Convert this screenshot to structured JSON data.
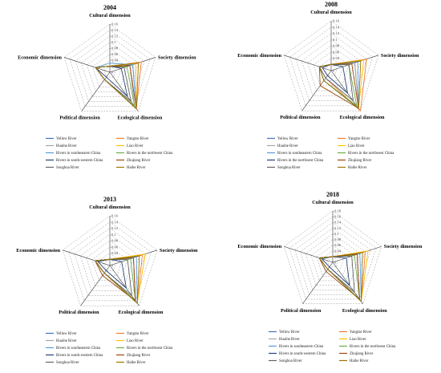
{
  "figure": {
    "background": "#ffffff"
  },
  "chart_data": [
    {
      "type": "radar",
      "title": "2004",
      "axes": [
        "Cultural dimension",
        "Society dimension",
        "Ecological dimension",
        "Political dimension",
        "Economic dimension"
      ],
      "ticks": [
        "0",
        "0.02",
        "0.04",
        "0.06",
        "0.08",
        "0.1",
        "0.12",
        "0.14",
        "0.16"
      ],
      "rmax": 0.16,
      "legend": [
        "Yellow River",
        "Yangtze River",
        "Huaihe River",
        "Liao River",
        "Rivers in southeastern China",
        "Rivers in the northwest China",
        "Rivers in south-western China",
        "Zhujiang River",
        "Songhua River",
        "Haihe River"
      ],
      "series": [
        {
          "name": "Yellow River",
          "color": "#4472c4",
          "values": [
            0.02,
            0.08,
            0.15,
            0.03,
            0.05
          ]
        },
        {
          "name": "Yangtze River",
          "color": "#ed7d31",
          "values": [
            0.02,
            0.11,
            0.15,
            0.03,
            0.05
          ]
        },
        {
          "name": "Huaihe River",
          "color": "#a5a5a5",
          "values": [
            0.02,
            0.07,
            0.14,
            0.03,
            0.05
          ]
        },
        {
          "name": "Liao River",
          "color": "#ffc000",
          "values": [
            0.02,
            0.09,
            0.15,
            0.03,
            0.05
          ]
        },
        {
          "name": "Rivers in southeastern China",
          "color": "#5b9bd5",
          "values": [
            0.03,
            0.08,
            0.15,
            0.03,
            0.05
          ]
        },
        {
          "name": "Rivers in the northwest China",
          "color": "#70ad47",
          "values": [
            0.02,
            0.06,
            0.14,
            0.03,
            0.05
          ]
        },
        {
          "name": "Rivers in south-western China",
          "color": "#264478",
          "values": [
            0.02,
            0.04,
            0.1,
            0.02,
            0.05
          ]
        },
        {
          "name": "Zhujiang River",
          "color": "#9e480e",
          "values": [
            0.02,
            0.07,
            0.15,
            0.03,
            0.05
          ]
        },
        {
          "name": "Songhua River",
          "color": "#636363",
          "values": [
            0.02,
            0.05,
            0.12,
            0.03,
            0.05
          ]
        },
        {
          "name": "Haihe River",
          "color": "#997300",
          "values": [
            0.02,
            0.1,
            0.15,
            0.03,
            0.05
          ]
        }
      ]
    },
    {
      "type": "radar",
      "title": "2008",
      "axes": [
        "Cultural dimension",
        "Society dimension",
        "Ecological dimension",
        "Political dimension",
        "Economic dimension"
      ],
      "ticks": [
        "0",
        "0.02",
        "0.04",
        "0.06",
        "0.08",
        "0.1",
        "0.12",
        "0.14",
        "0.16"
      ],
      "rmax": 0.16,
      "legend": [
        "Yellow River",
        "Yangtze River",
        "Huaihe River",
        "Liao River",
        "Rivers in southeastern China",
        "Rivers in the northwest China",
        "Rivers in the northwest China",
        "Zhujiang River",
        "Songhua River",
        "Haihe River"
      ],
      "series": [
        {
          "name": "Yellow River",
          "color": "#4472c4",
          "values": [
            0.02,
            0.08,
            0.15,
            0.04,
            0.04
          ]
        },
        {
          "name": "Yangtze River",
          "color": "#ed7d31",
          "values": [
            0.02,
            0.12,
            0.16,
            0.03,
            0.04
          ]
        },
        {
          "name": "Huaihe River",
          "color": "#a5a5a5",
          "values": [
            0.02,
            0.08,
            0.15,
            0.04,
            0.04
          ]
        },
        {
          "name": "Liao River",
          "color": "#ffc000",
          "values": [
            0.02,
            0.11,
            0.15,
            0.04,
            0.04
          ]
        },
        {
          "name": "Rivers in southeastern China",
          "color": "#5b9bd5",
          "values": [
            0.02,
            0.09,
            0.15,
            0.04,
            0.04
          ]
        },
        {
          "name": "Rivers in the northwest China",
          "color": "#70ad47",
          "values": [
            0.02,
            0.06,
            0.14,
            0.04,
            0.04
          ]
        },
        {
          "name": "Rivers in the northwest China",
          "color": "#264478",
          "values": [
            0.02,
            0.04,
            0.09,
            0.02,
            0.03
          ]
        },
        {
          "name": "Zhujiang River",
          "color": "#9e480e",
          "values": [
            0.02,
            0.07,
            0.15,
            0.06,
            0.04
          ]
        },
        {
          "name": "Songhua River",
          "color": "#636363",
          "values": [
            0.02,
            0.06,
            0.12,
            0.03,
            0.04
          ]
        },
        {
          "name": "Haihe River",
          "color": "#997300",
          "values": [
            0.02,
            0.1,
            0.15,
            0.04,
            0.04
          ]
        }
      ]
    },
    {
      "type": "radar",
      "title": "2013",
      "axes": [
        "Cultural dimension",
        "Society dimension",
        "Ecological dimension",
        "Political dimension",
        "Economic dimension"
      ],
      "ticks": [
        "0",
        "0.02",
        "0.04",
        "0.06",
        "0.08",
        "0.1",
        "0.12",
        "0.14",
        "0.16"
      ],
      "rmax": 0.16,
      "legend": [
        "Yellow River",
        "Yangtze River",
        "Huaihe River",
        "Liao River",
        "Rivers in southeastern China",
        "Rivers in the northwest China",
        "Rivers in south-western China",
        "Zhujiang River",
        "Songhua River",
        "Haihe River"
      ],
      "series": [
        {
          "name": "Yellow River",
          "color": "#4472c4",
          "values": [
            0.02,
            0.08,
            0.14,
            0.03,
            0.05
          ]
        },
        {
          "name": "Yangtze River",
          "color": "#ed7d31",
          "values": [
            0.02,
            0.11,
            0.15,
            0.03,
            0.05
          ]
        },
        {
          "name": "Huaihe River",
          "color": "#a5a5a5",
          "values": [
            0.02,
            0.08,
            0.14,
            0.03,
            0.05
          ]
        },
        {
          "name": "Liao River",
          "color": "#ffc000",
          "values": [
            0.02,
            0.12,
            0.15,
            0.03,
            0.05
          ]
        },
        {
          "name": "Rivers in southeastern China",
          "color": "#5b9bd5",
          "values": [
            0.02,
            0.09,
            0.15,
            0.03,
            0.05
          ]
        },
        {
          "name": "Rivers in the northwest China",
          "color": "#70ad47",
          "values": [
            0.02,
            0.07,
            0.14,
            0.03,
            0.05
          ]
        },
        {
          "name": "Rivers in south-western China",
          "color": "#264478",
          "values": [
            0.02,
            0.04,
            0.09,
            0.02,
            0.04
          ]
        },
        {
          "name": "Zhujiang River",
          "color": "#9e480e",
          "values": [
            0.02,
            0.08,
            0.14,
            0.04,
            0.05
          ]
        },
        {
          "name": "Songhua River",
          "color": "#636363",
          "values": [
            0.02,
            0.06,
            0.12,
            0.03,
            0.05
          ]
        },
        {
          "name": "Haihe River",
          "color": "#997300",
          "values": [
            0.02,
            0.1,
            0.15,
            0.03,
            0.05
          ]
        }
      ]
    },
    {
      "type": "radar",
      "title": "2018",
      "axes": [
        "Cultural dimension",
        "Society dimension",
        "Ecological dimension",
        "Political dimension",
        "Economic dimension"
      ],
      "ticks": [
        "0",
        "0.02",
        "0.04",
        "0.06",
        "0.08",
        "0.1",
        "0.12",
        "0.14",
        "0.16",
        "0.18"
      ],
      "rmax": 0.18,
      "legend": [
        "Yellow River",
        "Yangtze River",
        "Huaihe River",
        "Liao River",
        "Rivers in southeastern China",
        "Rivers in the northwest China",
        "Rivers in south-western China",
        "Zhujiang River",
        "Songhua River",
        "Haihe River"
      ],
      "series": [
        {
          "name": "Yellow River",
          "color": "#4472c4",
          "values": [
            0.02,
            0.09,
            0.16,
            0.03,
            0.05
          ]
        },
        {
          "name": "Yangtze River",
          "color": "#ed7d31",
          "values": [
            0.02,
            0.12,
            0.17,
            0.03,
            0.05
          ]
        },
        {
          "name": "Huaihe River",
          "color": "#a5a5a5",
          "values": [
            0.02,
            0.09,
            0.16,
            0.03,
            0.05
          ]
        },
        {
          "name": "Liao River",
          "color": "#ffc000",
          "values": [
            0.02,
            0.13,
            0.17,
            0.03,
            0.05
          ]
        },
        {
          "name": "Rivers in southeastern China",
          "color": "#5b9bd5",
          "values": [
            0.02,
            0.1,
            0.17,
            0.03,
            0.05
          ]
        },
        {
          "name": "Rivers in the northwest China",
          "color": "#70ad47",
          "values": [
            0.02,
            0.08,
            0.16,
            0.03,
            0.05
          ]
        },
        {
          "name": "Rivers in south-western China",
          "color": "#264478",
          "values": [
            0.02,
            0.05,
            0.1,
            0.02,
            0.04
          ]
        },
        {
          "name": "Zhujiang River",
          "color": "#9e480e",
          "values": [
            0.02,
            0.09,
            0.16,
            0.04,
            0.05
          ]
        },
        {
          "name": "Songhua River",
          "color": "#636363",
          "values": [
            0.02,
            0.07,
            0.13,
            0.03,
            0.05
          ]
        },
        {
          "name": "Haihe River",
          "color": "#997300",
          "values": [
            0.02,
            0.11,
            0.17,
            0.03,
            0.05
          ]
        }
      ]
    }
  ]
}
